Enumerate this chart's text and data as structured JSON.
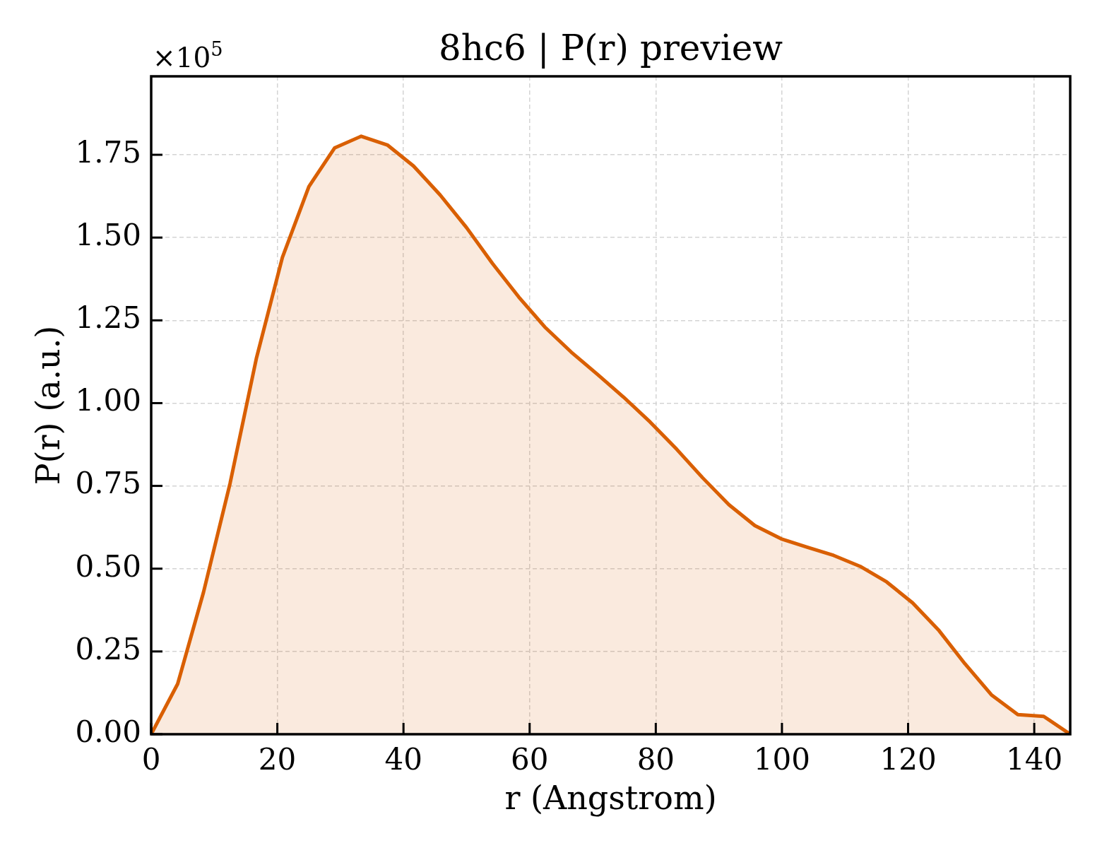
{
  "chart_data": {
    "type": "area",
    "title": "8hc6 | P(r) preview",
    "xlabel": "r (Angstrom)",
    "ylabel": "P(r) (a.u.)",
    "annotations": [
      "×10$^{5}$"
    ],
    "x": [
      0,
      4.2,
      8.3,
      12.5,
      16.7,
      20.8,
      25.0,
      29.1,
      33.3,
      37.5,
      41.6,
      45.8,
      50.0,
      54.1,
      58.3,
      62.4,
      66.6,
      70.8,
      74.9,
      79.1,
      83.3,
      87.4,
      91.6,
      95.7,
      99.9,
      104.1,
      108.2,
      112.4,
      116.6,
      120.7,
      124.9,
      129.0,
      133.2,
      137.4,
      141.5,
      145.7
    ],
    "values": [
      0,
      0.152,
      0.429,
      0.757,
      1.137,
      1.44,
      1.654,
      1.771,
      1.806,
      1.779,
      1.716,
      1.629,
      1.53,
      1.422,
      1.32,
      1.23,
      1.154,
      1.086,
      1.018,
      0.943,
      0.861,
      0.775,
      0.693,
      0.63,
      0.59,
      0.564,
      0.54,
      0.507,
      0.46,
      0.397,
      0.313,
      0.213,
      0.119,
      0.059,
      0.054,
      0
    ],
    "color": "#d95f02",
    "xlim": [
      0,
      145.7
    ],
    "ylim": [
      0,
      1.987
    ],
    "xticks": [
      0,
      20,
      40,
      60,
      80,
      100,
      120,
      140
    ],
    "yticks": [
      {
        "value": 0,
        "label": "0.00"
      },
      {
        "value": 0.25,
        "label": "0.25"
      },
      {
        "value": 0.5,
        "label": "0.50"
      },
      {
        "value": 0.75,
        "label": "0.75"
      },
      {
        "value": 1,
        "label": "1.00"
      },
      {
        "value": 1.25,
        "label": "1.25"
      },
      {
        "value": 1.5,
        "label": "1.50"
      },
      {
        "value": 1.75,
        "label": "1.75"
      }
    ],
    "grid": true
  }
}
